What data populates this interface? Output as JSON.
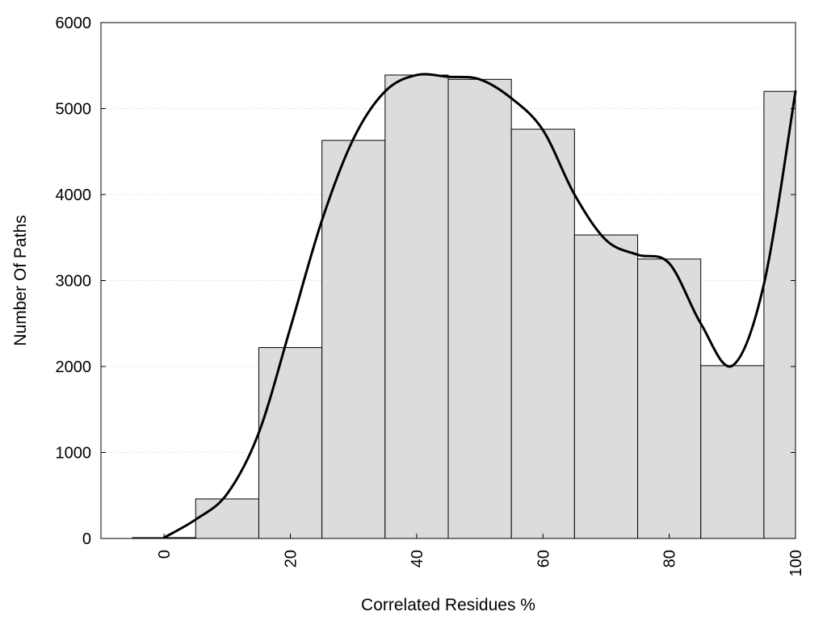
{
  "chart_data": {
    "type": "bar",
    "title": "",
    "xlabel": "Correlated Residues %",
    "ylabel": "Number Of Paths",
    "xlim": [
      -10,
      100
    ],
    "ylim": [
      0,
      6000
    ],
    "grid": true,
    "legend": "none",
    "x_ticks": [
      0,
      20,
      40,
      60,
      80,
      100
    ],
    "x_tick_labels": [
      "0",
      "20",
      "40",
      "60",
      "80",
      "100"
    ],
    "y_ticks": [
      0,
      1000,
      2000,
      3000,
      4000,
      5000,
      6000
    ],
    "y_tick_labels": [
      "0",
      "1000",
      "2000",
      "3000",
      "4000",
      "5000",
      "6000"
    ],
    "bars": [
      {
        "from": -5,
        "to": 5,
        "value": 10
      },
      {
        "from": 5,
        "to": 15,
        "value": 460
      },
      {
        "from": 15,
        "to": 25,
        "value": 2220
      },
      {
        "from": 25,
        "to": 35,
        "value": 4630
      },
      {
        "from": 35,
        "to": 45,
        "value": 5390
      },
      {
        "from": 45,
        "to": 55,
        "value": 5340
      },
      {
        "from": 55,
        "to": 65,
        "value": 4760
      },
      {
        "from": 65,
        "to": 75,
        "value": 3530
      },
      {
        "from": 75,
        "to": 85,
        "value": 3250
      },
      {
        "from": 85,
        "to": 95,
        "value": 2010
      },
      {
        "from": 95,
        "to": 100,
        "value": 5200
      }
    ],
    "curve": {
      "x": [
        0,
        5,
        10,
        15,
        20,
        25,
        30,
        35,
        40,
        45,
        50,
        55,
        60,
        65,
        70,
        75,
        80,
        85,
        90,
        95,
        100
      ],
      "y": [
        10,
        220,
        520,
        1230,
        2450,
        3700,
        4650,
        5200,
        5390,
        5370,
        5340,
        5120,
        4750,
        4000,
        3470,
        3300,
        3200,
        2500,
        2010,
        2960,
        5200
      ]
    },
    "colors": {
      "bar_fill": "#dcdcdc",
      "bar_stroke": "#000000",
      "curve": "#000000",
      "grid": "#cccccc"
    }
  }
}
